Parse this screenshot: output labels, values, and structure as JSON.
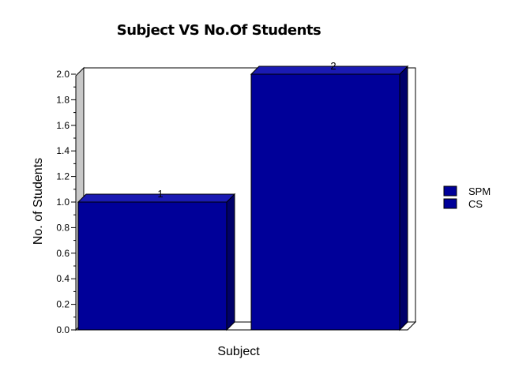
{
  "chart_data": {
    "type": "bar",
    "title": "Subject VS No.Of Students",
    "xlabel": "Subject",
    "ylabel": "No. of Students",
    "ylim": [
      0,
      2.0
    ],
    "yticks": [
      "0.0",
      "0.2",
      "0.4",
      "0.6",
      "0.8",
      "1.0",
      "1.2",
      "1.4",
      "1.6",
      "1.8",
      "2.0"
    ],
    "series": [
      {
        "name": "SPM",
        "values": [
          1
        ]
      },
      {
        "name": "CS",
        "values": [
          2
        ]
      }
    ],
    "data_labels": [
      "1",
      "2"
    ],
    "legend_position": "right",
    "grid": false,
    "bar_color": "#000099",
    "bar_side_color": "#00006a",
    "bar_top_color": "#1a1ab3"
  }
}
